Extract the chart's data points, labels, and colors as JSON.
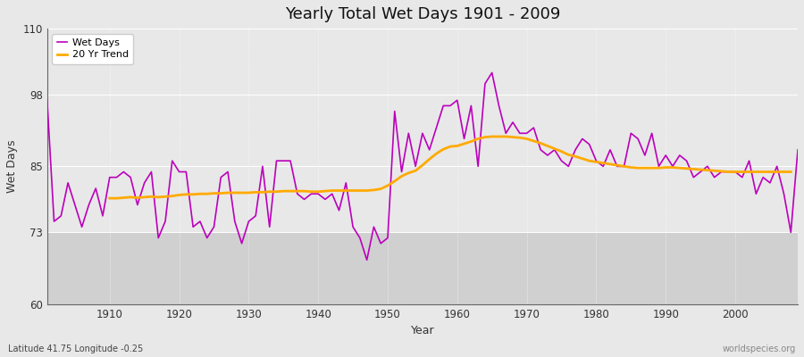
{
  "title": "Yearly Total Wet Days 1901 - 2009",
  "xlabel": "Year",
  "ylabel": "Wet Days",
  "subtitle": "Latitude 41.75 Longitude -0.25",
  "watermark": "worldspecies.org",
  "ylim": [
    60,
    110
  ],
  "yticks": [
    60,
    73,
    85,
    98,
    110
  ],
  "xlim": [
    1901,
    2009
  ],
  "xticks": [
    1910,
    1920,
    1930,
    1940,
    1950,
    1960,
    1970,
    1980,
    1990,
    2000
  ],
  "years": [
    1901,
    1902,
    1903,
    1904,
    1905,
    1906,
    1907,
    1908,
    1909,
    1910,
    1911,
    1912,
    1913,
    1914,
    1915,
    1916,
    1917,
    1918,
    1919,
    1920,
    1921,
    1922,
    1923,
    1924,
    1925,
    1926,
    1927,
    1928,
    1929,
    1930,
    1931,
    1932,
    1933,
    1934,
    1935,
    1936,
    1937,
    1938,
    1939,
    1940,
    1941,
    1942,
    1943,
    1944,
    1945,
    1946,
    1947,
    1948,
    1949,
    1950,
    1951,
    1952,
    1953,
    1954,
    1955,
    1956,
    1957,
    1958,
    1959,
    1960,
    1961,
    1962,
    1963,
    1964,
    1965,
    1966,
    1967,
    1968,
    1969,
    1970,
    1971,
    1972,
    1973,
    1974,
    1975,
    1976,
    1977,
    1978,
    1979,
    1980,
    1981,
    1982,
    1983,
    1984,
    1985,
    1986,
    1987,
    1988,
    1989,
    1990,
    1991,
    1992,
    1993,
    1994,
    1995,
    1996,
    1997,
    1998,
    1999,
    2000,
    2001,
    2002,
    2003,
    2004,
    2005,
    2006,
    2007,
    2008,
    2009
  ],
  "wet_days": [
    97,
    75,
    76,
    82,
    78,
    74,
    78,
    81,
    76,
    83,
    83,
    84,
    83,
    78,
    82,
    84,
    72,
    75,
    86,
    84,
    84,
    74,
    75,
    72,
    74,
    83,
    84,
    75,
    71,
    75,
    76,
    85,
    74,
    86,
    86,
    86,
    80,
    79,
    80,
    80,
    79,
    80,
    77,
    82,
    74,
    72,
    68,
    74,
    71,
    72,
    95,
    84,
    91,
    85,
    91,
    88,
    92,
    96,
    96,
    97,
    90,
    96,
    85,
    100,
    102,
    96,
    91,
    93,
    91,
    91,
    92,
    88,
    87,
    88,
    86,
    85,
    88,
    90,
    89,
    86,
    85,
    88,
    85,
    85,
    91,
    90,
    87,
    91,
    85,
    87,
    85,
    87,
    86,
    83,
    84,
    85,
    83,
    84,
    84,
    84,
    83,
    86,
    80,
    83,
    82,
    85,
    80,
    73,
    88
  ],
  "trend_years": [
    1901,
    1902,
    1903,
    1904,
    1905,
    1906,
    1907,
    1908,
    1909,
    1910,
    1911,
    1912,
    1913,
    1914,
    1915,
    1916,
    1917,
    1918,
    1919,
    1920,
    1921,
    1922,
    1923,
    1924,
    1925,
    1926,
    1927,
    1928,
    1929,
    1930,
    1931,
    1932,
    1933,
    1934,
    1935,
    1936,
    1937,
    1938,
    1939,
    1940,
    1941,
    1942,
    1943,
    1944,
    1945,
    1946,
    1947,
    1948,
    1949,
    1950,
    1951,
    1952,
    1953,
    1954,
    1955,
    1956,
    1957,
    1958,
    1959,
    1960,
    1961,
    1962,
    1963,
    1964,
    1965,
    1966,
    1967,
    1968,
    1969,
    1970,
    1971,
    1972,
    1973,
    1974,
    1975,
    1976,
    1977,
    1978,
    1979,
    1980,
    1981,
    1982,
    1983,
    1984,
    1985,
    1986,
    1987,
    1988,
    1989,
    1990,
    1991,
    1992,
    1993,
    1994,
    1995,
    1996,
    1997,
    1998,
    1999,
    2000,
    2001,
    2002,
    2003,
    2004,
    2005,
    2006,
    2007,
    2008,
    2009
  ],
  "trend_values": [
    null,
    null,
    null,
    null,
    null,
    null,
    null,
    null,
    null,
    79.2,
    79.2,
    79.3,
    79.4,
    79.3,
    79.4,
    79.5,
    79.4,
    79.5,
    79.6,
    79.8,
    79.9,
    79.9,
    80.0,
    80.0,
    80.1,
    80.1,
    80.2,
    80.2,
    80.2,
    80.2,
    80.3,
    80.3,
    80.4,
    80.4,
    80.5,
    80.5,
    80.5,
    80.5,
    80.4,
    80.4,
    80.5,
    80.6,
    80.6,
    80.6,
    80.6,
    80.6,
    80.6,
    80.7,
    80.9,
    81.5,
    82.3,
    83.2,
    83.8,
    84.2,
    85.2,
    86.3,
    87.3,
    88.1,
    88.6,
    88.7,
    89.1,
    89.5,
    90.0,
    90.3,
    90.4,
    90.4,
    90.4,
    90.3,
    90.2,
    90.0,
    89.6,
    89.2,
    88.7,
    88.2,
    87.7,
    87.1,
    86.8,
    86.4,
    86.0,
    85.8,
    85.6,
    85.4,
    85.2,
    85.0,
    84.8,
    84.7,
    84.7,
    84.7,
    84.7,
    84.8,
    84.8,
    84.7,
    84.6,
    84.5,
    84.4,
    84.3,
    84.2,
    84.1,
    84.0,
    84.0,
    84.0,
    84.0,
    84.0,
    84.0,
    84.0,
    84.0,
    84.0,
    84.0
  ],
  "wet_days_color": "#bb00bb",
  "trend_color": "#ffaa00",
  "fig_bg_color": "#e8e8e8",
  "plot_bg_upper": "#e8e8e8",
  "plot_bg_lower": "#d0d0d0",
  "grid_color": "#ffffff",
  "band_threshold": 73,
  "legend_label_wet": "Wet Days",
  "legend_label_trend": "20 Yr Trend"
}
